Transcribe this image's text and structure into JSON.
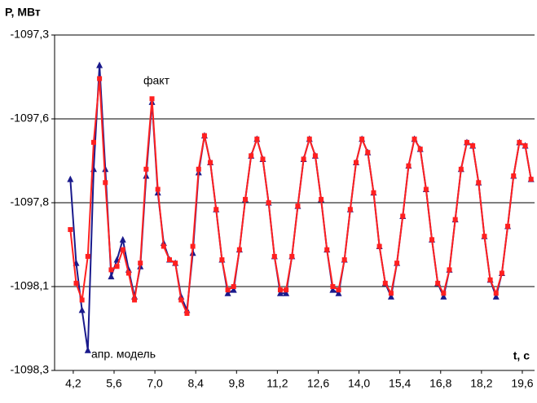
{
  "chart_data": {
    "type": "scatter",
    "y_label": "P, МВт",
    "x_label": "t, c",
    "x": [
      4.1,
      4.3,
      4.5,
      4.7,
      4.9,
      5.1,
      5.3,
      5.5,
      5.7,
      5.9,
      6.1,
      6.3,
      6.5,
      6.7,
      6.9,
      7.1,
      7.3,
      7.5,
      7.7,
      7.9,
      8.1,
      8.3,
      8.5,
      8.7,
      8.9,
      9.1,
      9.3,
      9.5,
      9.7,
      9.9,
      10.1,
      10.3,
      10.5,
      10.7,
      10.9,
      11.1,
      11.3,
      11.5,
      11.7,
      11.9,
      12.1,
      12.3,
      12.5,
      12.7,
      12.9,
      13.1,
      13.3,
      13.5,
      13.7,
      13.9,
      14.1,
      14.3,
      14.5,
      14.7,
      14.9,
      15.1,
      15.3,
      15.5,
      15.7,
      15.9,
      16.1,
      16.3,
      16.5,
      16.7,
      16.9,
      17.1,
      17.3,
      17.5,
      17.7,
      17.9,
      18.1,
      18.3,
      18.5,
      18.7,
      18.9,
      19.1,
      19.3,
      19.5,
      19.7,
      19.9
    ],
    "series": [
      {
        "name": "апр. модель",
        "color": "#1a1a8c",
        "marker": "triangle",
        "values": [
          -1097.73,
          -1097.98,
          -1098.12,
          -1098.24,
          -1097.7,
          -1097.39,
          -1097.7,
          -1098.02,
          -1097.97,
          -1097.91,
          -1098.0,
          -1098.08,
          -1097.99,
          -1097.72,
          -1097.5,
          -1097.77,
          -1097.92,
          -1097.97,
          -1097.98,
          -1098.08,
          -1098.12,
          -1097.95,
          -1097.71,
          -1097.6,
          -1097.68,
          -1097.82,
          -1097.97,
          -1098.07,
          -1098.06,
          -1097.94,
          -1097.79,
          -1097.66,
          -1097.61,
          -1097.67,
          -1097.8,
          -1097.96,
          -1098.07,
          -1098.07,
          -1097.96,
          -1097.81,
          -1097.67,
          -1097.61,
          -1097.66,
          -1097.79,
          -1097.94,
          -1098.06,
          -1098.07,
          -1097.97,
          -1097.82,
          -1097.68,
          -1097.61,
          -1097.65,
          -1097.77,
          -1097.93,
          -1098.04,
          -1098.08,
          -1097.98,
          -1097.84,
          -1097.69,
          -1097.61,
          -1097.64,
          -1097.76,
          -1097.91,
          -1098.04,
          -1098.08,
          -1098.0,
          -1097.85,
          -1097.7,
          -1097.62,
          -1097.63,
          -1097.74,
          -1097.9,
          -1098.03,
          -1098.08,
          -1098.01,
          -1097.87,
          -1097.72,
          -1097.62,
          -1097.63,
          -1097.73
        ]
      },
      {
        "name": "факт",
        "color": "#ff2020",
        "marker": "square",
        "values": [
          -1097.88,
          -1098.04,
          -1098.09,
          -1097.96,
          -1097.62,
          -1097.43,
          -1097.74,
          -1098.0,
          -1097.99,
          -1097.94,
          -1098.01,
          -1098.09,
          -1097.98,
          -1097.7,
          -1097.49,
          -1097.76,
          -1097.93,
          -1097.97,
          -1097.98,
          -1098.09,
          -1098.13,
          -1097.93,
          -1097.7,
          -1097.6,
          -1097.68,
          -1097.82,
          -1097.97,
          -1098.06,
          -1098.05,
          -1097.94,
          -1097.79,
          -1097.66,
          -1097.61,
          -1097.67,
          -1097.8,
          -1097.96,
          -1098.06,
          -1098.06,
          -1097.96,
          -1097.81,
          -1097.67,
          -1097.61,
          -1097.66,
          -1097.79,
          -1097.94,
          -1098.05,
          -1098.06,
          -1097.97,
          -1097.82,
          -1097.68,
          -1097.61,
          -1097.65,
          -1097.77,
          -1097.93,
          -1098.04,
          -1098.07,
          -1097.98,
          -1097.84,
          -1097.69,
          -1097.61,
          -1097.64,
          -1097.76,
          -1097.91,
          -1098.04,
          -1098.07,
          -1098.0,
          -1097.85,
          -1097.7,
          -1097.62,
          -1097.63,
          -1097.74,
          -1097.9,
          -1098.03,
          -1098.07,
          -1098.01,
          -1097.87,
          -1097.72,
          -1097.62,
          -1097.63,
          -1097.73
        ]
      }
    ],
    "xlim": [
      3.56,
      20.02
    ],
    "xticks": [
      {
        "value": 4.2,
        "label": "4,2"
      },
      {
        "value": 5.6,
        "label": "5,6"
      },
      {
        "value": 7.0,
        "label": "7,0"
      },
      {
        "value": 8.4,
        "label": "8,4"
      },
      {
        "value": 9.8,
        "label": "9,8"
      },
      {
        "value": 11.2,
        "label": "11,2"
      },
      {
        "value": 12.6,
        "label": "12,6"
      },
      {
        "value": 14.0,
        "label": "14,0"
      },
      {
        "value": 15.4,
        "label": "15,4"
      },
      {
        "value": 16.8,
        "label": "16,8"
      },
      {
        "value": 18.2,
        "label": "18,2"
      },
      {
        "value": 19.6,
        "label": "19,6"
      }
    ],
    "ylim": [
      -1098.3,
      -1097.3
    ],
    "yticks": [
      {
        "value": -1098.3,
        "label": "-1098,3"
      },
      {
        "value": -1098.05,
        "label": "-1098,1"
      },
      {
        "value": -1097.8,
        "label": "-1097,8"
      },
      {
        "value": -1097.55,
        "label": "-1097,6"
      },
      {
        "value": -1097.3,
        "label": "-1097,3"
      }
    ],
    "grid": true
  }
}
